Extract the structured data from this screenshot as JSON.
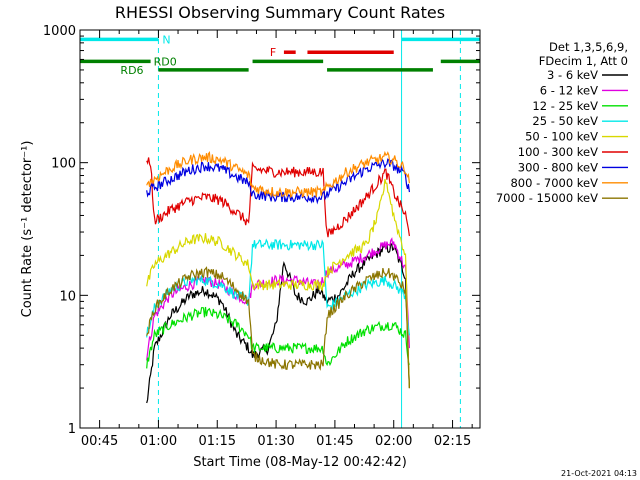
{
  "chart_data": {
    "type": "line",
    "title": "RHESSI Observing Summary Count Rates",
    "xlabel": "Start Time (08-May-12 00:42:42)",
    "ylabel": "Count Rate (s⁻¹ detector⁻¹)",
    "yscale": "log",
    "xlim": [
      "00:40",
      "02:22"
    ],
    "ylim": [
      1,
      1000
    ],
    "x_ticks": [
      "00:45",
      "01:00",
      "01:15",
      "01:30",
      "01:45",
      "02:00",
      "02:15"
    ],
    "y_ticks": [
      1,
      10,
      100,
      1000
    ],
    "legend_title": [
      "Det 1,3,5,6,9,",
      "FDecim 1, Att 0"
    ],
    "legend_position": "right",
    "footer": "21-Oct-2021 04:13",
    "series": [
      {
        "name": "3 - 6 keV",
        "color": "#000000",
        "x": [
          "00:57",
          "00:59",
          "01:03",
          "01:08",
          "01:12",
          "01:16",
          "01:20",
          "01:23",
          "01:24",
          "01:28",
          "01:30",
          "01:32",
          "01:35",
          "01:38",
          "01:41",
          "01:43",
          "01:46",
          "01:50",
          "01:54",
          "01:57",
          "02:00",
          "02:03",
          "02:04"
        ],
        "y": [
          1.5,
          4,
          7,
          10,
          11,
          9,
          5,
          4,
          3.5,
          4,
          6,
          18,
          10,
          9,
          11,
          9,
          10,
          15,
          19,
          22,
          23,
          14,
          2
        ]
      },
      {
        "name": "6 - 12 keV",
        "color": "#e000e0",
        "x": [
          "00:57",
          "00:59",
          "01:03",
          "01:08",
          "01:12",
          "01:16",
          "01:20",
          "01:23",
          "01:24",
          "01:30",
          "01:35",
          "01:40",
          "01:42",
          "01:43",
          "01:48",
          "01:53",
          "01:58",
          "02:00",
          "02:03",
          "02:04"
        ],
        "y": [
          3.5,
          7,
          10,
          12,
          13,
          12,
          10,
          9,
          12,
          13,
          13,
          12,
          13,
          15,
          17,
          20,
          24,
          25,
          16,
          4
        ]
      },
      {
        "name": "12 - 25 keV",
        "color": "#00e000",
        "x": [
          "00:57",
          "00:59",
          "01:03",
          "01:08",
          "01:12",
          "01:16",
          "01:20",
          "01:23",
          "01:24",
          "01:30",
          "01:35",
          "01:40",
          "01:42",
          "01:43",
          "01:48",
          "01:53",
          "01:58",
          "02:00",
          "02:03",
          "02:04"
        ],
        "y": [
          3,
          5,
          6,
          7,
          7.5,
          7,
          6,
          5,
          4,
          4,
          4,
          4,
          4,
          3,
          4.5,
          5.5,
          6,
          6,
          5,
          3
        ]
      },
      {
        "name": "25 - 50 keV",
        "color": "#00e8e8",
        "x": [
          "00:57",
          "00:59",
          "01:03",
          "01:08",
          "01:12",
          "01:16",
          "01:20",
          "01:23",
          "01:24",
          "01:30",
          "01:35",
          "01:40",
          "01:42",
          "01:43",
          "01:48",
          "01:53",
          "01:58",
          "02:00",
          "02:03",
          "02:04"
        ],
        "y": [
          5,
          8,
          11,
          13,
          13,
          12,
          10,
          9,
          24,
          24,
          24,
          24,
          24,
          8,
          10,
          12,
          13,
          12,
          10,
          5
        ]
      },
      {
        "name": "50 - 100 keV",
        "color": "#d8d800",
        "x": [
          "00:57",
          "00:59",
          "01:03",
          "01:08",
          "01:12",
          "01:16",
          "01:20",
          "01:23",
          "01:24",
          "01:30",
          "01:35",
          "01:40",
          "01:42",
          "01:43",
          "01:48",
          "01:53",
          "01:56",
          "01:58",
          "02:00",
          "02:03",
          "02:04"
        ],
        "y": [
          12,
          17,
          21,
          26,
          27,
          25,
          20,
          17,
          12,
          12,
          12,
          12,
          12,
          15,
          20,
          24,
          40,
          75,
          40,
          20,
          2
        ]
      },
      {
        "name": "100 - 300 keV",
        "color": "#e00000",
        "x": [
          "00:57",
          "00:58",
          "00:59",
          "01:03",
          "01:08",
          "01:12",
          "01:16",
          "01:20",
          "01:23",
          "01:24",
          "01:30",
          "01:35",
          "01:40",
          "01:42",
          "01:43",
          "01:48",
          "01:53",
          "01:58",
          "02:00",
          "02:03",
          "02:04"
        ],
        "y": [
          100,
          100,
          36,
          44,
          52,
          55,
          52,
          42,
          35,
          90,
          85,
          85,
          85,
          85,
          28,
          38,
          55,
          85,
          60,
          40,
          28
        ]
      },
      {
        "name": "300 - 800 keV",
        "color": "#0000e0",
        "x": [
          "00:57",
          "00:59",
          "01:03",
          "01:08",
          "01:12",
          "01:16",
          "01:20",
          "01:23",
          "01:24",
          "01:30",
          "01:35",
          "01:40",
          "01:42",
          "01:43",
          "01:48",
          "01:53",
          "01:58",
          "02:00",
          "02:03",
          "02:04"
        ],
        "y": [
          60,
          65,
          75,
          88,
          95,
          90,
          78,
          70,
          58,
          55,
          55,
          55,
          55,
          58,
          72,
          90,
          100,
          95,
          80,
          60
        ]
      },
      {
        "name": "800 - 7000 keV",
        "color": "#ff8c00",
        "x": [
          "00:57",
          "00:59",
          "01:03",
          "01:08",
          "01:12",
          "01:16",
          "01:20",
          "01:23",
          "01:24",
          "01:30",
          "01:35",
          "01:40",
          "01:42",
          "01:43",
          "01:48",
          "01:53",
          "01:58",
          "02:00",
          "02:03",
          "02:04"
        ],
        "y": [
          70,
          75,
          90,
          105,
          110,
          105,
          90,
          80,
          65,
          60,
          60,
          60,
          60,
          65,
          85,
          100,
          110,
          105,
          90,
          70
        ]
      },
      {
        "name": "7000 - 15000 keV",
        "color": "#8b7500",
        "x": [
          "00:57",
          "00:59",
          "01:03",
          "01:08",
          "01:12",
          "01:16",
          "01:20",
          "01:23",
          "01:24",
          "01:30",
          "01:35",
          "01:40",
          "01:42",
          "01:43",
          "01:48",
          "01:53",
          "01:58",
          "02:00",
          "02:03",
          "02:04"
        ],
        "y": [
          5,
          8,
          11,
          14,
          15,
          14,
          11,
          9,
          3.5,
          3,
          3,
          3,
          3,
          7,
          10,
          13,
          15,
          14,
          11,
          2
        ]
      }
    ],
    "state_bars": [
      {
        "label": "N",
        "color": "#00e8e8",
        "level": 850,
        "segments": [
          [
            "00:40",
            "01:00"
          ],
          [
            "02:02",
            "02:22"
          ]
        ]
      },
      {
        "label": "F",
        "color": "#e00000",
        "level": 680,
        "segments": [
          [
            "01:32",
            "01:35"
          ],
          [
            "01:38",
            "02:00"
          ]
        ]
      },
      {
        "label": "RD0",
        "color": "#008000",
        "level": 580,
        "segments": [
          [
            "00:40",
            "00:58"
          ],
          [
            "01:24",
            "01:42"
          ],
          [
            "02:12",
            "02:22"
          ]
        ]
      },
      {
        "label": "RD6",
        "color": "#008000",
        "level": 500,
        "segments": [
          [
            "01:00",
            "01:23"
          ],
          [
            "01:43",
            "02:10"
          ]
        ]
      }
    ],
    "vertical_markers": [
      {
        "time": "00:40",
        "color": "#00e8e8",
        "style": "solid"
      },
      {
        "time": "01:00",
        "color": "#00e8e8",
        "style": "dashed"
      },
      {
        "time": "02:02",
        "color": "#00e8e8",
        "style": "solid"
      },
      {
        "time": "02:17",
        "color": "#00e8e8",
        "style": "dashed"
      }
    ]
  }
}
